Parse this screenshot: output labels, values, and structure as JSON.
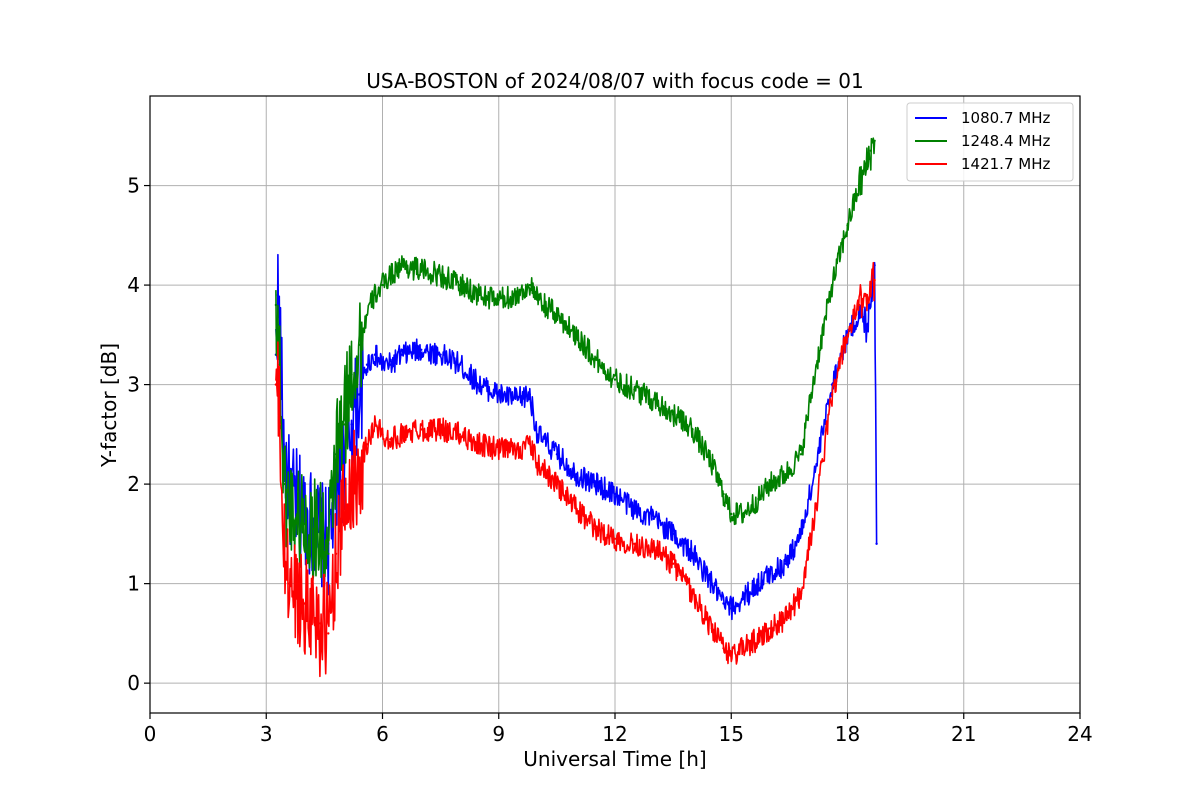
{
  "chart_data": {
    "type": "line",
    "title": "USA-BOSTON of 2024/08/07 with focus code = 01",
    "xlabel": "Universal Time [h]",
    "ylabel": "Y-factor [dB]",
    "xlim": [
      0,
      24
    ],
    "ylim": [
      -0.3,
      5.9
    ],
    "xticks": [
      0,
      3,
      6,
      9,
      12,
      15,
      18,
      21,
      24
    ],
    "yticks": [
      0,
      1,
      2,
      3,
      4,
      5
    ],
    "grid": true,
    "legend_position": "top-right",
    "series": [
      {
        "name": "1080.7 MHz",
        "color": "#0000ff",
        "x": [
          3.25,
          3.3,
          3.35,
          3.45,
          3.6,
          3.8,
          4.0,
          4.2,
          4.4,
          4.6,
          4.8,
          5.0,
          5.2,
          5.4,
          5.6,
          5.8,
          6.0,
          6.2,
          6.5,
          7.0,
          7.5,
          8.0,
          8.5,
          9.0,
          9.5,
          9.8,
          10.0,
          10.5,
          11.0,
          11.5,
          12.0,
          12.5,
          13.0,
          13.5,
          14.0,
          14.5,
          14.8,
          15.0,
          15.3,
          15.7,
          16.0,
          16.4,
          16.8,
          17.2,
          17.6,
          18.0,
          18.3,
          18.5,
          18.6,
          18.7,
          18.75
        ],
        "y": [
          3.3,
          3.9,
          3.5,
          2.4,
          1.9,
          1.8,
          1.7,
          1.6,
          1.5,
          1.4,
          1.9,
          2.2,
          2.6,
          2.9,
          3.2,
          3.3,
          3.2,
          3.2,
          3.3,
          3.35,
          3.3,
          3.2,
          3.0,
          2.9,
          2.85,
          2.9,
          2.5,
          2.3,
          2.1,
          2.0,
          1.9,
          1.75,
          1.65,
          1.5,
          1.3,
          1.0,
          0.8,
          0.75,
          0.85,
          1.0,
          1.1,
          1.2,
          1.5,
          2.2,
          3.0,
          3.5,
          3.7,
          3.6,
          3.9,
          4.2,
          1.4
        ]
      },
      {
        "name": "1248.4 MHz",
        "color": "#008000",
        "x": [
          3.25,
          3.3,
          3.35,
          3.45,
          3.6,
          3.8,
          4.0,
          4.2,
          4.4,
          4.6,
          4.8,
          5.0,
          5.2,
          5.4,
          5.6,
          5.8,
          6.0,
          6.2,
          6.5,
          7.0,
          7.5,
          8.0,
          8.5,
          9.0,
          9.5,
          9.8,
          10.0,
          10.5,
          11.0,
          11.5,
          12.0,
          12.5,
          13.0,
          13.5,
          14.0,
          14.5,
          14.8,
          15.0,
          15.3,
          15.7,
          16.0,
          16.4,
          16.8,
          17.2,
          17.6,
          18.0,
          18.3,
          18.5,
          18.6,
          18.7
        ],
        "y": [
          3.8,
          3.6,
          3.2,
          2.0,
          1.8,
          1.7,
          1.6,
          1.55,
          1.5,
          1.3,
          2.3,
          2.6,
          3.1,
          3.4,
          3.7,
          3.9,
          4.0,
          4.1,
          4.2,
          4.15,
          4.1,
          4.0,
          3.9,
          3.85,
          3.9,
          4.0,
          3.85,
          3.7,
          3.5,
          3.25,
          3.05,
          2.95,
          2.85,
          2.7,
          2.55,
          2.2,
          1.9,
          1.7,
          1.7,
          1.85,
          2.0,
          2.1,
          2.3,
          3.2,
          4.0,
          4.6,
          5.0,
          5.2,
          5.35,
          5.45
        ]
      },
      {
        "name": "1421.7 MHz",
        "color": "#ff0000",
        "x": [
          3.25,
          3.3,
          3.35,
          3.45,
          3.6,
          3.8,
          4.0,
          4.2,
          4.4,
          4.6,
          4.8,
          5.0,
          5.2,
          5.4,
          5.6,
          5.8,
          6.0,
          6.2,
          6.5,
          7.0,
          7.5,
          8.0,
          8.5,
          9.0,
          9.5,
          9.8,
          10.0,
          10.5,
          11.0,
          11.5,
          12.0,
          12.5,
          13.0,
          13.5,
          14.0,
          14.5,
          14.8,
          15.0,
          15.3,
          15.7,
          16.0,
          16.4,
          16.8,
          17.2,
          17.6,
          18.0,
          18.3,
          18.5,
          18.6,
          18.7
        ],
        "y": [
          3.0,
          2.9,
          2.6,
          1.3,
          1.0,
          0.9,
          0.8,
          0.75,
          0.6,
          0.5,
          1.3,
          1.7,
          2.0,
          2.2,
          2.4,
          2.6,
          2.5,
          2.45,
          2.5,
          2.55,
          2.55,
          2.5,
          2.4,
          2.35,
          2.35,
          2.4,
          2.2,
          2.0,
          1.75,
          1.55,
          1.45,
          1.4,
          1.35,
          1.2,
          0.9,
          0.55,
          0.35,
          0.28,
          0.35,
          0.45,
          0.55,
          0.65,
          0.9,
          1.8,
          2.9,
          3.5,
          3.8,
          3.9,
          4.0,
          4.05
        ]
      }
    ]
  }
}
